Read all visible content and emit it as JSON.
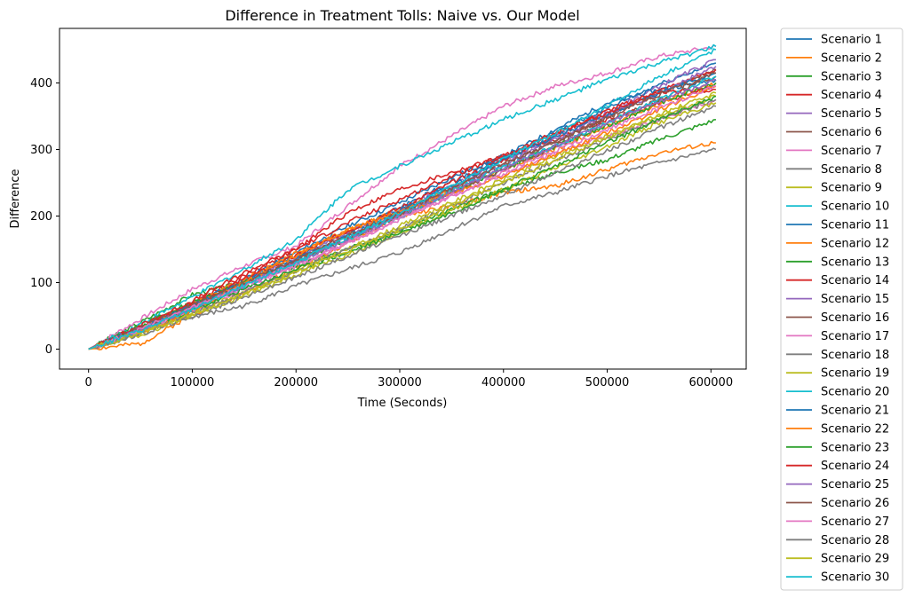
{
  "chart_data": {
    "type": "line",
    "title": "Difference in Treatment Tolls: Naive vs. Our Model",
    "xlabel": "Time (Seconds)",
    "ylabel": "Difference",
    "xlim": [
      -28000,
      634000
    ],
    "ylim": [
      -30,
      482
    ],
    "xticks": [
      0,
      100000,
      200000,
      300000,
      400000,
      500000,
      600000
    ],
    "xtick_labels": [
      "0",
      "100000",
      "200000",
      "300000",
      "400000",
      "500000",
      "600000"
    ],
    "yticks": [
      0,
      100,
      200,
      300,
      400
    ],
    "ytick_labels": [
      "0",
      "100",
      "200",
      "300",
      "400"
    ],
    "grid": false,
    "legend_position": "outside-right",
    "x": [
      0,
      50000,
      100000,
      150000,
      200000,
      250000,
      300000,
      350000,
      400000,
      450000,
      500000,
      550000,
      604800
    ],
    "series": [
      {
        "name": "Scenario 1",
        "color": "#1f77b4",
        "values": [
          0,
          30,
          68,
          103,
          140,
          176,
          213,
          251,
          288,
          325,
          362,
          398,
          430
        ]
      },
      {
        "name": "Scenario 2",
        "color": "#ff7f0e",
        "values": [
          0,
          8,
          52,
          85,
          120,
          160,
          200,
          215,
          235,
          245,
          270,
          295,
          310
        ]
      },
      {
        "name": "Scenario 3",
        "color": "#2ca02c",
        "values": [
          0,
          40,
          82,
          100,
          125,
          150,
          180,
          210,
          240,
          265,
          285,
          315,
          345
        ]
      },
      {
        "name": "Scenario 4",
        "color": "#d62728",
        "values": [
          0,
          35,
          70,
          110,
          150,
          205,
          240,
          265,
          290,
          315,
          345,
          370,
          395
        ]
      },
      {
        "name": "Scenario 5",
        "color": "#9467bd",
        "values": [
          0,
          30,
          65,
          100,
          138,
          175,
          210,
          245,
          282,
          320,
          355,
          395,
          435
        ]
      },
      {
        "name": "Scenario 6",
        "color": "#8c564b",
        "values": [
          0,
          28,
          62,
          98,
          133,
          170,
          205,
          240,
          278,
          312,
          350,
          385,
          420
        ]
      },
      {
        "name": "Scenario 7",
        "color": "#e377c2",
        "values": [
          0,
          45,
          90,
          125,
          155,
          215,
          275,
          320,
          365,
          395,
          415,
          440,
          455
        ]
      },
      {
        "name": "Scenario 8",
        "color": "#7f7f7f",
        "values": [
          0,
          30,
          48,
          65,
          95,
          120,
          145,
          180,
          215,
          235,
          260,
          280,
          300
        ]
      },
      {
        "name": "Scenario 9",
        "color": "#bcbd22",
        "values": [
          0,
          25,
          55,
          85,
          118,
          150,
          185,
          220,
          255,
          290,
          320,
          350,
          380
        ]
      },
      {
        "name": "Scenario 10",
        "color": "#17becf",
        "values": [
          0,
          38,
          78,
          120,
          165,
          240,
          275,
          310,
          345,
          375,
          405,
          430,
          455
        ]
      },
      {
        "name": "Scenario 11",
        "color": "#1f77b4",
        "values": [
          0,
          32,
          68,
          105,
          145,
          185,
          220,
          258,
          290,
          330,
          370,
          390,
          405
        ]
      },
      {
        "name": "Scenario 12",
        "color": "#ff7f0e",
        "values": [
          0,
          30,
          68,
          105,
          145,
          178,
          210,
          240,
          270,
          300,
          335,
          368,
          400
        ]
      },
      {
        "name": "Scenario 13",
        "color": "#2ca02c",
        "values": [
          0,
          35,
          70,
          100,
          130,
          165,
          200,
          235,
          270,
          305,
          335,
          370,
          400
        ]
      },
      {
        "name": "Scenario 14",
        "color": "#d62728",
        "values": [
          0,
          32,
          65,
          105,
          140,
          178,
          212,
          250,
          285,
          322,
          358,
          388,
          420
        ]
      },
      {
        "name": "Scenario 15",
        "color": "#9467bd",
        "values": [
          0,
          28,
          60,
          95,
          130,
          168,
          205,
          240,
          278,
          315,
          352,
          385,
          425
        ]
      },
      {
        "name": "Scenario 16",
        "color": "#8c564b",
        "values": [
          0,
          30,
          62,
          98,
          132,
          165,
          200,
          235,
          270,
          305,
          340,
          375,
          410
        ]
      },
      {
        "name": "Scenario 17",
        "color": "#e377c2",
        "values": [
          0,
          28,
          58,
          90,
          125,
          160,
          195,
          230,
          262,
          295,
          320,
          345,
          375
        ]
      },
      {
        "name": "Scenario 18",
        "color": "#7f7f7f",
        "values": [
          0,
          25,
          55,
          85,
          118,
          150,
          180,
          215,
          250,
          282,
          315,
          345,
          375
        ]
      },
      {
        "name": "Scenario 19",
        "color": "#bcbd22",
        "values": [
          0,
          22,
          50,
          80,
          112,
          142,
          175,
          208,
          240,
          272,
          305,
          340,
          370
        ]
      },
      {
        "name": "Scenario 20",
        "color": "#17becf",
        "values": [
          0,
          28,
          62,
          95,
          130,
          165,
          200,
          238,
          275,
          305,
          340,
          375,
          410
        ]
      },
      {
        "name": "Scenario 21",
        "color": "#1f77b4",
        "values": [
          0,
          30,
          65,
          100,
          135,
          170,
          208,
          245,
          285,
          320,
          352,
          385,
          415
        ]
      },
      {
        "name": "Scenario 22",
        "color": "#ff7f0e",
        "values": [
          0,
          25,
          58,
          100,
          140,
          180,
          205,
          235,
          260,
          292,
          325,
          360,
          395
        ]
      },
      {
        "name": "Scenario 23",
        "color": "#2ca02c",
        "values": [
          0,
          30,
          58,
          90,
          120,
          145,
          175,
          205,
          240,
          275,
          310,
          345,
          380
        ]
      },
      {
        "name": "Scenario 24",
        "color": "#d62728",
        "values": [
          0,
          35,
          72,
          115,
          150,
          190,
          225,
          260,
          290,
          325,
          355,
          385,
          390
        ]
      },
      {
        "name": "Scenario 25",
        "color": "#9467bd",
        "values": [
          0,
          30,
          62,
          95,
          130,
          165,
          200,
          235,
          272,
          305,
          340,
          372,
          405
        ]
      },
      {
        "name": "Scenario 26",
        "color": "#8c564b",
        "values": [
          0,
          32,
          65,
          100,
          135,
          170,
          205,
          242,
          278,
          312,
          348,
          382,
          415
        ]
      },
      {
        "name": "Scenario 27",
        "color": "#e377c2",
        "values": [
          0,
          30,
          62,
          95,
          128,
          160,
          195,
          230,
          265,
          298,
          330,
          362,
          395
        ]
      },
      {
        "name": "Scenario 28",
        "color": "#7f7f7f",
        "values": [
          0,
          22,
          50,
          78,
          108,
          140,
          170,
          200,
          232,
          265,
          298,
          332,
          365
        ]
      },
      {
        "name": "Scenario 29",
        "color": "#bcbd22",
        "values": [
          0,
          25,
          52,
          82,
          115,
          148,
          180,
          215,
          250,
          285,
          318,
          352,
          385
        ]
      },
      {
        "name": "Scenario 30",
        "color": "#17becf",
        "values": [
          0,
          28,
          60,
          95,
          130,
          168,
          205,
          245,
          285,
          325,
          365,
          410,
          450
        ]
      }
    ]
  }
}
